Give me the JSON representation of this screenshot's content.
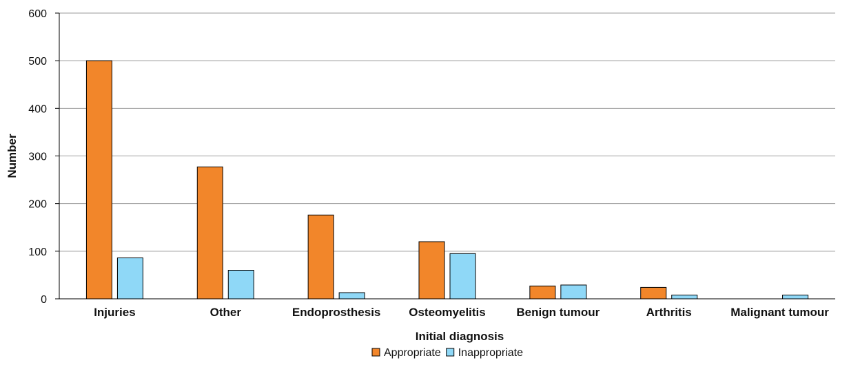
{
  "chart_data": {
    "type": "bar",
    "categories": [
      "Injuries",
      "Other",
      "Endoprosthesis",
      "Osteomyelitis",
      "Benign tumour",
      "Arthritis",
      "Malignant tumour"
    ],
    "series": [
      {
        "name": "Appropriate",
        "values": [
          500,
          277,
          176,
          120,
          27,
          24,
          0
        ],
        "color": "#F2862A"
      },
      {
        "name": "Inappropriate",
        "values": [
          86,
          60,
          13,
          95,
          29,
          8,
          8
        ],
        "color": "#8FD8F7"
      }
    ],
    "xlabel": "Initial diagnosis",
    "ylabel": "Number",
    "ylim": [
      0,
      600
    ],
    "yticks": [
      0,
      100,
      200,
      300,
      400,
      500,
      600
    ],
    "grid": true,
    "legend_position": "bottom-center",
    "bar_outline_color": "#000000",
    "grid_color": "#9a9a9a"
  }
}
